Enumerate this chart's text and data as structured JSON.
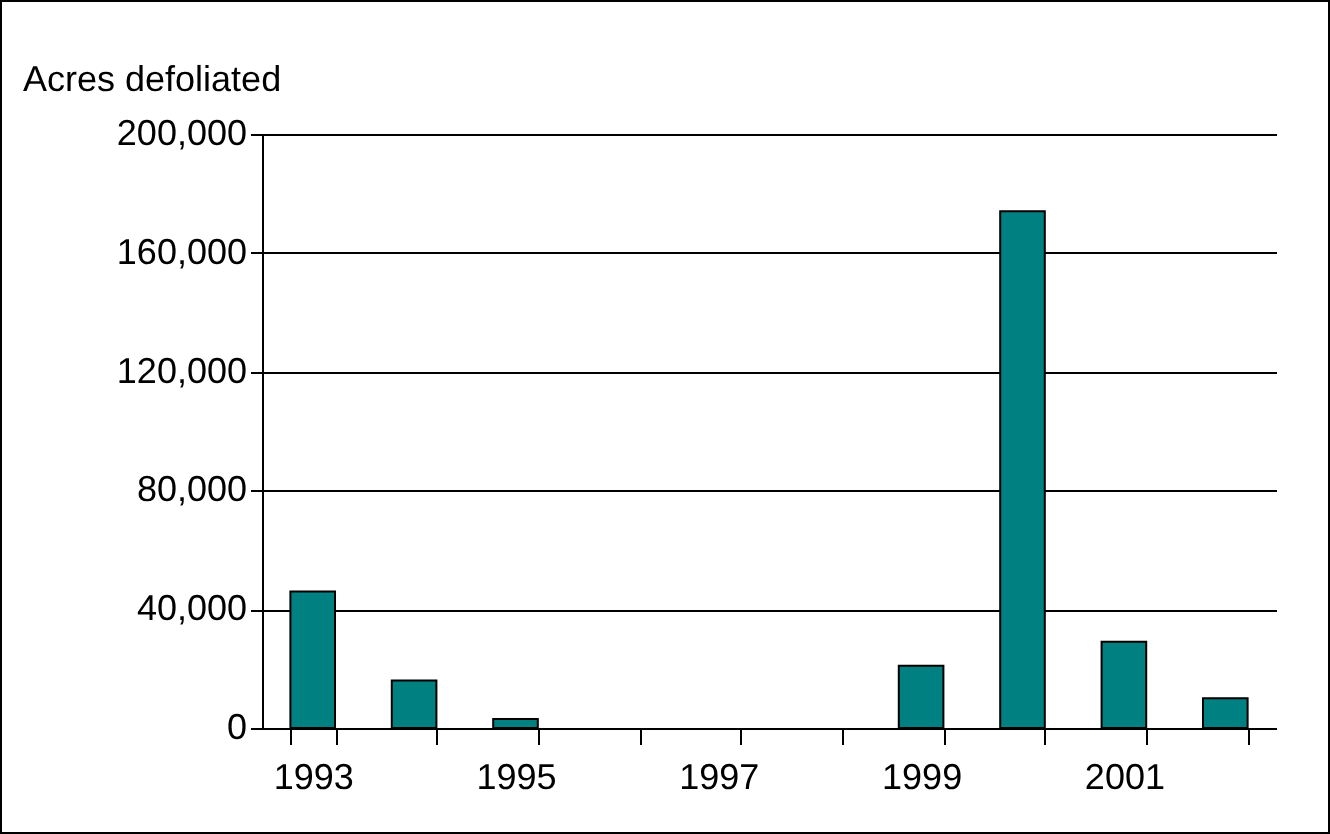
{
  "chart_data": {
    "type": "bar",
    "ylabel": "Acres defoliated",
    "categories": [
      "1993",
      null,
      "1995",
      null,
      "1997",
      null,
      "1999",
      null,
      "2001",
      null
    ],
    "values": [
      46000,
      16000,
      3000,
      0,
      0,
      0,
      21000,
      174000,
      29000,
      10000
    ],
    "color": "#008080",
    "ylim": [
      0,
      200000
    ],
    "yticks": [
      {
        "value": 0,
        "label": "0"
      },
      {
        "value": 40000,
        "label": "40,000"
      },
      {
        "value": 80000,
        "label": "80,000"
      },
      {
        "value": 120000,
        "label": "120,000"
      },
      {
        "value": 160000,
        "label": "160,000"
      },
      {
        "value": 200000,
        "label": "200,000"
      }
    ],
    "grid": "y"
  }
}
